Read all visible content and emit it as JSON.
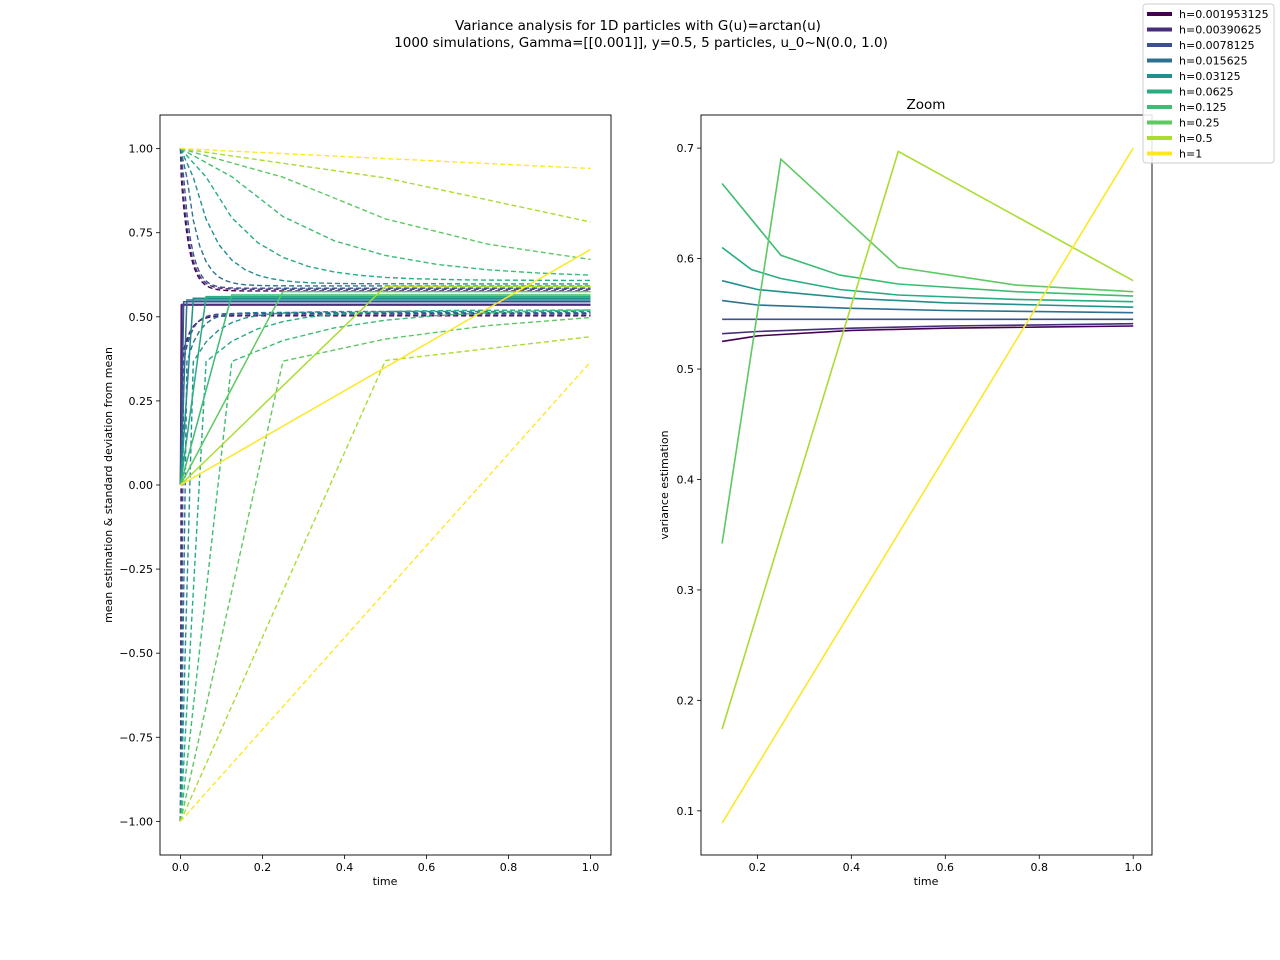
{
  "figure": {
    "title_line1": "Variance analysis for 1D particles with G(u)=arctan(u)",
    "title_line2": "1000 simulations, Gamma=[[0.001]], y=0.5, 5 particles, u_0~N(0.0, 1.0)"
  },
  "legend": {
    "placement": "top-right",
    "entries": [
      {
        "label": "h=0.001953125",
        "color": "#440154"
      },
      {
        "label": "h=0.00390625",
        "color": "#472c7a"
      },
      {
        "label": "h=0.0078125",
        "color": "#3b518b"
      },
      {
        "label": "h=0.015625",
        "color": "#2c718e"
      },
      {
        "label": "h=0.03125",
        "color": "#21908d"
      },
      {
        "label": "h=0.0625",
        "color": "#27ad81"
      },
      {
        "label": "h=0.125",
        "color": "#3dbc74"
      },
      {
        "label": "h=0.25",
        "color": "#5ec962"
      },
      {
        "label": "h=0.5",
        "color": "#aadc32"
      },
      {
        "label": "h=1",
        "color": "#fde725"
      }
    ]
  },
  "chart_data": [
    {
      "type": "line",
      "title": "",
      "xlabel": "time",
      "ylabel": "mean estimation & standard deviation from mean",
      "xlim": [
        -0.05,
        1.05
      ],
      "ylim": [
        -1.1,
        1.1
      ],
      "xticks": [
        0.0,
        0.2,
        0.4,
        0.6,
        0.8,
        1.0
      ],
      "xtick_labels": [
        "0.0",
        "0.2",
        "0.4",
        "0.6",
        "0.8",
        "1.0"
      ],
      "yticks": [
        -1.0,
        -0.75,
        -0.5,
        -0.25,
        0.0,
        0.25,
        0.5,
        0.75,
        1.0
      ],
      "ytick_labels": [
        "−1.00",
        "−0.75",
        "−0.50",
        "−0.25",
        "0.00",
        "0.25",
        "0.50",
        "0.75",
        "1.00"
      ],
      "series": [
        {
          "h": 0.001953125,
          "color": "#440154",
          "mean_final": 0.535,
          "upper_final": 0.577,
          "lower_final": 0.503
        },
        {
          "h": 0.00390625,
          "color": "#472c7a",
          "mean_final": 0.537,
          "upper_final": 0.582,
          "lower_final": 0.505
        },
        {
          "h": 0.0078125,
          "color": "#3b518b",
          "mean_final": 0.545,
          "upper_final": 0.585,
          "lower_final": 0.51
        },
        {
          "h": 0.015625,
          "color": "#2c718e",
          "mean_final": 0.55,
          "upper_final": 0.592,
          "lower_final": 0.513
        },
        {
          "h": 0.03125,
          "color": "#21908d",
          "mean_final": 0.555,
          "upper_final": 0.598,
          "lower_final": 0.516
        },
        {
          "h": 0.0625,
          "color": "#27ad81",
          "mean_final": 0.56,
          "upper_final": 0.608,
          "lower_final": 0.52
        },
        {
          "h": 0.125,
          "color": "#3dbc74",
          "mean_final": 0.565,
          "upper_final": 0.615,
          "lower_final": 0.525
        },
        {
          "h": 0.25,
          "color": "#5ec962",
          "mean_final": 0.575,
          "upper_final": 0.6,
          "lower_final": 0.535
        },
        {
          "h": 0.5,
          "color": "#aadc32",
          "mean_final": 0.59,
          "upper_final": 0.58,
          "lower_final": 0.55
        },
        {
          "h": 1,
          "color": "#fde725",
          "mean_final": 0.7,
          "upper_final": 0.86,
          "lower_final": 0.51
        }
      ]
    },
    {
      "type": "line",
      "title": "Zoom",
      "xlabel": "time",
      "ylabel": "variance estimation",
      "xlim": [
        0.08,
        1.04
      ],
      "ylim": [
        0.06,
        0.73
      ],
      "xticks": [
        0.2,
        0.4,
        0.6,
        0.8,
        1.0
      ],
      "xtick_labels": [
        "0.2",
        "0.4",
        "0.6",
        "0.8",
        "1.0"
      ],
      "yticks": [
        0.1,
        0.2,
        0.3,
        0.4,
        0.5,
        0.6,
        0.7
      ],
      "ytick_labels": [
        "0.1",
        "0.2",
        "0.3",
        "0.4",
        "0.5",
        "0.6",
        "0.7"
      ],
      "series": [
        {
          "h": 0.001953125,
          "color": "#440154",
          "x": [
            0.125,
            0.2,
            0.4,
            0.6,
            0.8,
            1.0
          ],
          "y": [
            0.525,
            0.53,
            0.535,
            0.537,
            0.538,
            0.539
          ]
        },
        {
          "h": 0.00390625,
          "color": "#472c7a",
          "x": [
            0.125,
            0.2,
            0.4,
            0.6,
            0.8,
            1.0
          ],
          "y": [
            0.532,
            0.534,
            0.537,
            0.539,
            0.54,
            0.541
          ]
        },
        {
          "h": 0.0078125,
          "color": "#3b518b",
          "x": [
            0.125,
            0.2,
            0.4,
            0.6,
            0.8,
            1.0
          ],
          "y": [
            0.545,
            0.545,
            0.545,
            0.545,
            0.545,
            0.545
          ]
        },
        {
          "h": 0.015625,
          "color": "#2c718e",
          "x": [
            0.125,
            0.2,
            0.4,
            0.6,
            0.8,
            1.0
          ],
          "y": [
            0.562,
            0.558,
            0.555,
            0.553,
            0.552,
            0.551
          ]
        },
        {
          "h": 0.03125,
          "color": "#21908d",
          "x": [
            0.125,
            0.2,
            0.4,
            0.6,
            0.8,
            1.0
          ],
          "y": [
            0.58,
            0.572,
            0.564,
            0.56,
            0.558,
            0.556
          ]
        },
        {
          "h": 0.0625,
          "color": "#27ad81",
          "x": [
            0.125,
            0.1875,
            0.25,
            0.375,
            0.5,
            0.75,
            1.0
          ],
          "y": [
            0.61,
            0.59,
            0.582,
            0.572,
            0.567,
            0.563,
            0.561
          ]
        },
        {
          "h": 0.125,
          "color": "#3dbc74",
          "x": [
            0.125,
            0.25,
            0.375,
            0.5,
            0.75,
            1.0
          ],
          "y": [
            0.668,
            0.603,
            0.585,
            0.577,
            0.57,
            0.566
          ]
        },
        {
          "h": 0.25,
          "color": "#5ec962",
          "x": [
            0.125,
            0.25,
            0.5,
            0.75,
            1.0
          ],
          "y": [
            0.342,
            0.69,
            0.592,
            0.576,
            0.57
          ]
        },
        {
          "h": 0.5,
          "color": "#aadc32",
          "x": [
            0.125,
            0.5,
            1.0
          ],
          "y": [
            0.174,
            0.697,
            0.58
          ]
        },
        {
          "h": 1,
          "color": "#fde725",
          "x": [
            0.125,
            1.0
          ],
          "y": [
            0.089,
            0.7
          ]
        }
      ]
    }
  ]
}
